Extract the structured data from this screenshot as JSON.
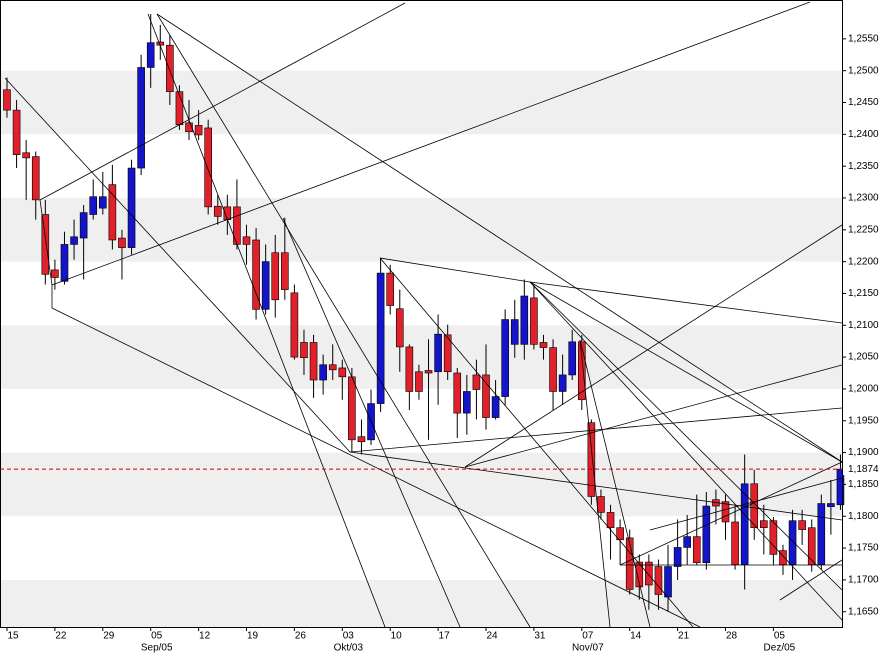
{
  "chart_data": {
    "type": "candlestick",
    "categories": [
      "15",
      null,
      null,
      null,
      null,
      "22",
      null,
      null,
      null,
      null,
      "29",
      null,
      null,
      null,
      null,
      "05",
      null,
      null,
      null,
      null,
      "12",
      null,
      null,
      null,
      null,
      "19",
      null,
      null,
      null,
      null,
      "26",
      null,
      null,
      null,
      null,
      "03",
      null,
      null,
      null,
      null,
      "10",
      null,
      null,
      null,
      null,
      "17",
      null,
      null,
      null,
      null,
      "24",
      null,
      null,
      null,
      null,
      "31",
      null,
      null,
      null,
      null,
      "07",
      null,
      null,
      null,
      null,
      "14",
      null,
      null,
      null,
      null,
      "21",
      null,
      null,
      null,
      null,
      "28",
      null,
      null,
      null,
      null,
      "05",
      null,
      null,
      null,
      null,
      null,
      null,
      null
    ],
    "month_labels": [
      null,
      null,
      null,
      null,
      null,
      null,
      null,
      null,
      null,
      null,
      null,
      null,
      null,
      null,
      null,
      "Sep/05",
      null,
      null,
      null,
      null,
      null,
      null,
      null,
      null,
      null,
      null,
      null,
      null,
      null,
      null,
      null,
      null,
      null,
      null,
      null,
      "Okt/03",
      null,
      null,
      null,
      null,
      null,
      null,
      null,
      null,
      null,
      null,
      null,
      null,
      null,
      null,
      null,
      null,
      null,
      null,
      null,
      null,
      null,
      null,
      null,
      null,
      "Nov/07",
      null,
      null,
      null,
      null,
      null,
      null,
      null,
      null,
      null,
      null,
      null,
      null,
      null,
      null,
      null,
      null,
      null,
      null,
      null,
      "Dez/05",
      null,
      null,
      null,
      null,
      null,
      null,
      null
    ],
    "open": [
      1.247,
      1.2438,
      1.2371,
      1.2365,
      1.2274,
      1.2187,
      1.2169,
      1.2227,
      1.2237,
      1.2274,
      1.2284,
      1.2321,
      1.2237,
      1.2222,
      1.2347,
      1.2505,
      1.2545,
      1.254,
      1.2467,
      1.2418,
      1.2414,
      1.241,
      1.2287,
      1.2286,
      1.2286,
      1.2239,
      1.2234,
      1.2125,
      1.2214,
      1.2214,
      1.2151,
      1.2073,
      1.2073,
      1.2014,
      1.2038,
      1.2033,
      1.2019,
      1.1925,
      1.192,
      1.1977,
      1.2182,
      1.2126,
      1.2066,
      1.2027,
      1.2029,
      1.2027,
      1.2085,
      1.2025,
      1.1962,
      1.2022,
      1.2022,
      1.1955,
      1.1988,
      1.207,
      1.207,
      1.2143,
      1.2073,
      1.2065,
      1.1996,
      1.2022,
      1.2074,
      1.1947,
      1.1831,
      1.1806,
      1.1782,
      1.1766,
      1.1728,
      1.1728,
      1.1721,
      1.1673,
      1.1721,
      1.1751,
      1.1768,
      1.1727,
      1.1826,
      1.1823,
      1.1791,
      1.1724,
      1.1851,
      1.1793,
      1.1793,
      1.1746,
      1.1724,
      1.1793,
      1.1782,
      1.1724,
      1.1815,
      1.1818
    ],
    "high": [
      1.2489,
      1.2454,
      1.2391,
      1.2373,
      1.2297,
      1.2203,
      1.2247,
      1.2266,
      1.2289,
      1.2329,
      1.2341,
      1.2352,
      1.225,
      1.236,
      1.2525,
      1.2589,
      1.2572,
      1.2556,
      1.2477,
      1.2454,
      1.2438,
      1.2423,
      1.2305,
      1.2305,
      1.2329,
      1.2258,
      1.2253,
      1.2227,
      1.2242,
      1.2269,
      1.2164,
      1.2093,
      1.2085,
      1.2054,
      1.207,
      1.2046,
      1.2033,
      1.1952,
      1.1999,
      1.2206,
      1.2195,
      1.2156,
      1.207,
      1.2038,
      1.2078,
      1.2117,
      1.2101,
      1.2033,
      1.2022,
      1.2046,
      1.207,
      1.2014,
      1.2125,
      1.214,
      1.2172,
      1.2164,
      1.2085,
      1.2078,
      1.2054,
      1.2093,
      1.2085,
      1.1952,
      1.1842,
      1.1818,
      1.1795,
      1.1779,
      1.174,
      1.174,
      1.1732,
      1.1755,
      1.1795,
      1.1802,
      1.1834,
      1.1838,
      1.1842,
      1.1834,
      1.1818,
      1.1897,
      1.1873,
      1.1818,
      1.1799,
      1.1755,
      1.181,
      1.181,
      1.1795,
      1.1834,
      1.1857,
      1.1897
    ],
    "low": [
      1.2426,
      1.2347,
      1.2297,
      1.2266,
      1.2164,
      1.2156,
      1.2164,
      1.2203,
      1.2172,
      1.2266,
      1.2274,
      1.2219,
      1.2172,
      1.2211,
      1.2336,
      1.2473,
      1.2517,
      1.2446,
      1.2407,
      1.2391,
      1.2391,
      1.2274,
      1.2258,
      1.2242,
      1.2219,
      1.2195,
      1.2109,
      1.2117,
      1.2112,
      1.214,
      1.2046,
      1.2022,
      1.1986,
      1.1991,
      1.2014,
      1.1983,
      1.1901,
      1.1897,
      1.1912,
      1.1964,
      1.2117,
      1.2027,
      1.1967,
      1.1983,
      1.192,
      1.1975,
      1.2014,
      1.1923,
      1.1928,
      1.1952,
      1.1936,
      1.1952,
      1.1975,
      1.2049,
      1.2046,
      1.2062,
      1.2046,
      1.1967,
      1.1975,
      1.2014,
      1.1967,
      1.1818,
      1.1795,
      1.1732,
      1.1724,
      1.1677,
      1.1669,
      1.1653,
      1.1653,
      1.165,
      1.17,
      1.1724,
      1.1724,
      1.1716,
      1.1787,
      1.1763,
      1.1716,
      1.1685,
      1.1763,
      1.174,
      1.1724,
      1.1708,
      1.17,
      1.1755,
      1.1713,
      1.1716,
      1.1771,
      1.181
    ],
    "close": [
      1.2438,
      1.2368,
      1.2363,
      1.2297,
      1.218,
      1.2175,
      1.2227,
      1.2239,
      1.2277,
      1.2302,
      1.2302,
      1.2234,
      1.2222,
      1.2347,
      1.2505,
      1.2544,
      1.254,
      1.2467,
      1.2415,
      1.2404,
      1.2399,
      1.2286,
      1.2271,
      1.2266,
      1.2227,
      1.2227,
      1.2125,
      1.22,
      1.214,
      1.2156,
      1.205,
      1.2049,
      1.2014,
      1.2038,
      1.203,
      1.2019,
      1.192,
      1.1917,
      1.1977,
      1.2182,
      1.2131,
      1.2066,
      1.1996,
      1.1996,
      1.2025,
      1.2086,
      1.2027,
      1.1962,
      1.1996,
      1.1999,
      1.1955,
      1.1988,
      1.2109,
      1.2109,
      1.2146,
      1.207,
      1.2065,
      1.1996,
      1.2022,
      1.2074,
      1.1983,
      1.1831,
      1.1806,
      1.1782,
      1.1763,
      1.1685,
      1.1689,
      1.1692,
      1.1677,
      1.1721,
      1.1751,
      1.1768,
      1.1727,
      1.1816,
      1.1816,
      1.1791,
      1.1724,
      1.1851,
      1.1782,
      1.1782,
      1.174,
      1.1724,
      1.1793,
      1.1779,
      1.1724,
      1.182,
      1.182,
      1.1874
    ],
    "up_color": "#1414c8",
    "down_color": "#e0202a",
    "current_price": {
      "value": 1.1874,
      "label": "1,1874"
    },
    "current_price_color": "#c00000",
    "band_color": "#efefef",
    "ylim": [
      1.2611,
      1.1626
    ],
    "yticks": [
      {
        "value": 1.255,
        "label": "1,2550"
      },
      {
        "value": 1.25,
        "label": "1,2500"
      },
      {
        "value": 1.245,
        "label": "1,2450"
      },
      {
        "value": 1.24,
        "label": "1,2400"
      },
      {
        "value": 1.235,
        "label": "1,2350"
      },
      {
        "value": 1.23,
        "label": "1,2300"
      },
      {
        "value": 1.225,
        "label": "1,2250"
      },
      {
        "value": 1.22,
        "label": "1,2200"
      },
      {
        "value": 1.215,
        "label": "1,2150"
      },
      {
        "value": 1.21,
        "label": "1,2100"
      },
      {
        "value": 1.205,
        "label": "1,2050"
      },
      {
        "value": 1.2,
        "label": "1,2000"
      },
      {
        "value": 1.195,
        "label": "1,1950"
      },
      {
        "value": 1.19,
        "label": "1,1900"
      },
      {
        "value": 1.185,
        "label": "1,1850"
      },
      {
        "value": 1.18,
        "label": "1,1800"
      },
      {
        "value": 1.175,
        "label": "1,1750"
      },
      {
        "value": 1.17,
        "label": "1,1700"
      },
      {
        "value": 1.165,
        "label": "1,1650"
      }
    ]
  }
}
